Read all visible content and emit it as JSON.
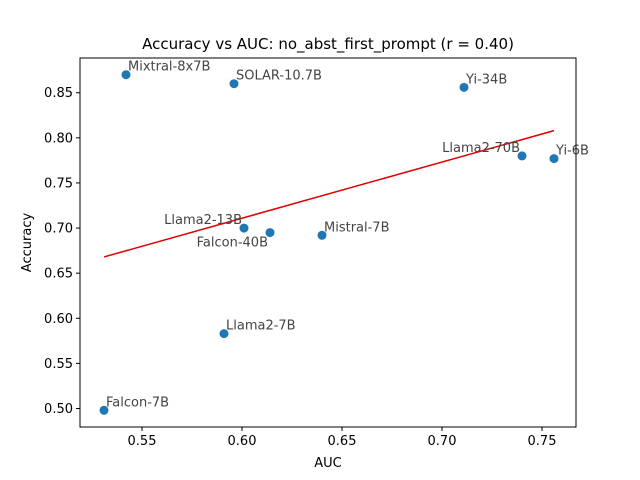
{
  "chart_data": {
    "type": "scatter",
    "title": "Accuracy vs AUC: no_abst_first_prompt (r = 0.40)",
    "xlabel": "AUC",
    "ylabel": "Accuracy",
    "xlim": [
      0.519,
      0.767
    ],
    "ylim": [
      0.4795,
      0.8885
    ],
    "xticks": [
      0.55,
      0.6,
      0.65,
      0.7,
      0.75
    ],
    "xtick_labels": [
      "0.55",
      "0.60",
      "0.65",
      "0.70",
      "0.75"
    ],
    "yticks": [
      0.5,
      0.55,
      0.6,
      0.65,
      0.7,
      0.75,
      0.8,
      0.85
    ],
    "ytick_labels": [
      "0.50",
      "0.55",
      "0.60",
      "0.65",
      "0.70",
      "0.75",
      "0.80",
      "0.85"
    ],
    "grid": false,
    "points": [
      {
        "label": "Mixtral-8x7B",
        "x": 0.542,
        "y": 0.87,
        "label_anchor": "start"
      },
      {
        "label": "SOLAR-10.7B",
        "x": 0.596,
        "y": 0.86,
        "label_anchor": "start"
      },
      {
        "label": "Yi-34B",
        "x": 0.711,
        "y": 0.856,
        "label_anchor": "start"
      },
      {
        "label": "Llama2-70B",
        "x": 0.74,
        "y": 0.78,
        "label_anchor": "end"
      },
      {
        "label": "Yi-6B",
        "x": 0.756,
        "y": 0.777,
        "label_anchor": "start"
      },
      {
        "label": "Llama2-13B",
        "x": 0.601,
        "y": 0.7,
        "label_anchor": "end"
      },
      {
        "label": "Falcon-40B",
        "x": 0.614,
        "y": 0.695,
        "label_anchor": "end-below"
      },
      {
        "label": "Mistral-7B",
        "x": 0.64,
        "y": 0.692,
        "label_anchor": "start"
      },
      {
        "label": "Llama2-7B",
        "x": 0.591,
        "y": 0.583,
        "label_anchor": "start"
      },
      {
        "label": "Falcon-7B",
        "x": 0.531,
        "y": 0.498,
        "label_anchor": "start"
      }
    ],
    "fit_line": {
      "x": [
        0.531,
        0.756
      ],
      "y": [
        0.668,
        0.808
      ],
      "color": "#e00000"
    },
    "marker_color": "#1f77b4"
  }
}
